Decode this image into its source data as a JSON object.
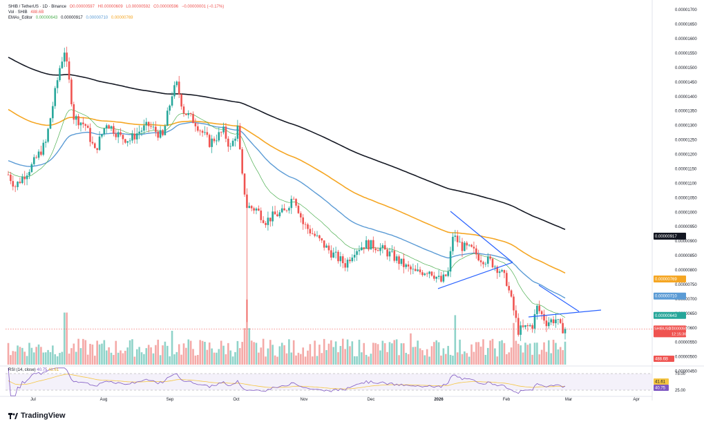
{
  "header": {
    "symbol_line": "SHIB / TetherUS · 1D · Binance",
    "ohlc": [
      "O0.00000597",
      "H0.00000609",
      "L0.00000592",
      "C0.00000596",
      "−0.00000001 (−0.17%)"
    ],
    "vol_label": "Vol · SHIB",
    "vol_value": "488.6B",
    "ema_label": "EMAs_Editor",
    "ema_values": [
      "0.00000643",
      "0.00000917",
      "0.00000710",
      "0.00000769"
    ]
  },
  "rsi": {
    "label": "RSI (14, close)",
    "value1": "40.75",
    "value2": "41.61"
  },
  "colors": {
    "up": "#26a69a",
    "down": "#ef5350",
    "ema_fast": "#4caf50",
    "ema_200": "#131722",
    "ema_blue": "#5b9bd5",
    "ema_orange": "#f5a623",
    "trendline": "#2962ff",
    "rsi_line": "#7e57c2",
    "rsi_ma": "#f5c542"
  },
  "chart_data": {
    "type": "candlestick",
    "title": "SHIB / TetherUS · 1D · Binance",
    "ylim": [
      4.8e-06,
      1.71e-05
    ],
    "price_ticks": [
      "0.00001700",
      "0.00001650",
      "0.00001600",
      "0.00001550",
      "0.00001500",
      "0.00001450",
      "0.00001400",
      "0.00001350",
      "0.00001300",
      "0.00001250",
      "0.00001200",
      "0.00001150",
      "0.00001100",
      "0.00001050",
      "0.00001000",
      "0.00000950",
      "0.00000900",
      "0.00000850",
      "0.00000800",
      "0.00000750",
      "0.00000700",
      "0.00000650",
      "0.00000600",
      "0.00000550",
      "0.00000500",
      "0.00000450"
    ],
    "month_ticks": [
      "Jul",
      "Aug",
      "Sep",
      "Oct",
      "Nov",
      "Dec",
      "2026",
      "Feb",
      "Mar",
      "Apr"
    ],
    "key_points": {
      "start": {
        "date": "Jul",
        "close": 1.15e-05
      },
      "jul_peak": {
        "date": "Jul 21",
        "high": 1.6e-05
      },
      "aug_low": {
        "date": "Aug 03",
        "close": 1.22e-05
      },
      "sep_peak": {
        "date": "Sep 13",
        "high": 1.48e-05
      },
      "oct_crash": {
        "date": "Oct 10",
        "low": 6.2e-06
      },
      "dec_low": {
        "date": "Dec 17",
        "close": 7.2e-06
      },
      "jan_peak": {
        "date": "Jan 06",
        "high": 1.01e-05
      },
      "feb_low": {
        "date": "Feb 05",
        "low": 5.3e-06
      },
      "last": {
        "date": "Feb 24",
        "close": 5.96e-06
      }
    },
    "series": [
      {
        "name": "EMA 200",
        "last": 9.17e-06
      },
      {
        "name": "EMA 100",
        "last": 7.69e-06
      },
      {
        "name": "EMA 50",
        "last": 7.1e-06
      },
      {
        "name": "EMA 20",
        "last": 6.43e-06
      }
    ],
    "price_tags": [
      {
        "label": "0.00000917",
        "color": "#131722"
      },
      {
        "label": "0.00000769",
        "color": "#f5a623"
      },
      {
        "label": "0.00000710",
        "color": "#5b9bd5"
      },
      {
        "label": "0.00000643",
        "color": "#26a69a"
      },
      {
        "label": "SHIBUSDT",
        "color": "#ef5350"
      },
      {
        "label": "0.00000596",
        "color": "#ef5350"
      },
      {
        "label": "12:15:36",
        "color": "#ef5350"
      },
      {
        "label": "488.6B",
        "color": "#ef5350"
      }
    ],
    "rsi_ticks": [
      "75.00",
      "25.00"
    ],
    "rsi_tags": [
      "41.61",
      "40.75"
    ]
  }
}
